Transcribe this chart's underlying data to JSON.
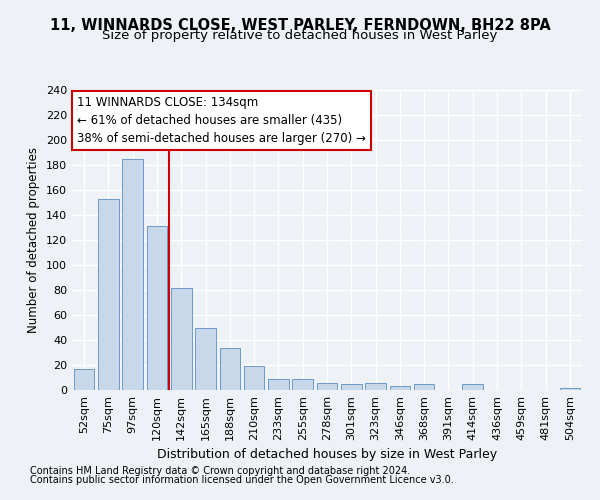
{
  "title_line1": "11, WINNARDS CLOSE, WEST PARLEY, FERNDOWN, BH22 8PA",
  "title_line2": "Size of property relative to detached houses in West Parley",
  "xlabel": "Distribution of detached houses by size in West Parley",
  "ylabel": "Number of detached properties",
  "bar_color": "#c8d8eb",
  "bar_edge_color": "#5a8dbf",
  "categories": [
    "52sqm",
    "75sqm",
    "97sqm",
    "120sqm",
    "142sqm",
    "165sqm",
    "188sqm",
    "210sqm",
    "233sqm",
    "255sqm",
    "278sqm",
    "301sqm",
    "323sqm",
    "346sqm",
    "368sqm",
    "391sqm",
    "414sqm",
    "436sqm",
    "459sqm",
    "481sqm",
    "504sqm"
  ],
  "values": [
    17,
    153,
    185,
    131,
    82,
    50,
    34,
    19,
    9,
    9,
    6,
    5,
    6,
    3,
    5,
    0,
    5,
    0,
    0,
    0,
    2
  ],
  "vline_x": 3.5,
  "vline_color": "#cc0000",
  "annotation_text": "11 WINNARDS CLOSE: 134sqm\n← 61% of detached houses are smaller (435)\n38% of semi-detached houses are larger (270) →",
  "annotation_box_color": "#ffffff",
  "annotation_box_edge": "#cc0000",
  "ylim": [
    0,
    240
  ],
  "yticks": [
    0,
    20,
    40,
    60,
    80,
    100,
    120,
    140,
    160,
    180,
    200,
    220,
    240
  ],
  "footer_line1": "Contains HM Land Registry data © Crown copyright and database right 2024.",
  "footer_line2": "Contains public sector information licensed under the Open Government Licence v3.0.",
  "background_color": "#eef2f7",
  "grid_color": "#ffffff",
  "title_fontsize": 10.5,
  "subtitle_fontsize": 9.5,
  "ylabel_fontsize": 8.5,
  "xlabel_fontsize": 9,
  "annotation_fontsize": 8.5,
  "tick_fontsize": 8,
  "footer_fontsize": 7
}
